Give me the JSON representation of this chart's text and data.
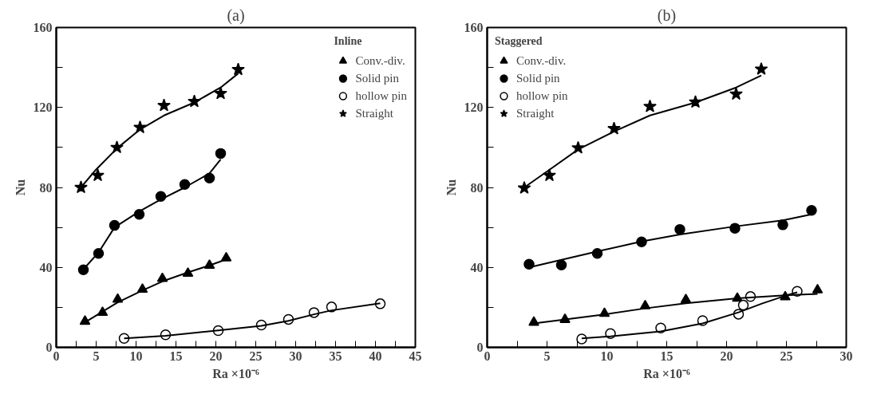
{
  "chart_data": [
    {
      "type": "scatter",
      "title": "(a)",
      "xlabel": "Ra ×10⁻⁶",
      "ylabel": "Nu",
      "legend_title": "Inline",
      "legend": "top right",
      "grid": false,
      "xlim": [
        0,
        45
      ],
      "xticks": [
        0,
        {
          "value": 2.5,
          "label": null
        },
        5,
        {
          "value": 7.5,
          "label": null
        },
        10,
        {
          "value": 12.5,
          "label": null
        },
        15,
        {
          "value": 17.5,
          "label": null
        },
        20,
        {
          "value": 22.5,
          "label": null
        },
        25,
        {
          "value": 27.5,
          "label": null
        },
        30,
        {
          "value": 32.5,
          "label": null
        },
        35,
        {
          "value": 37.5,
          "label": null
        },
        40,
        {
          "value": 42.5,
          "label": null
        },
        45
      ],
      "ylim": [
        0,
        160
      ],
      "yticks": [
        0,
        {
          "value": 20,
          "label": null
        },
        40,
        {
          "value": 60,
          "label": null
        },
        80,
        {
          "value": 100,
          "label": null
        },
        120,
        {
          "value": 140,
          "label": null
        },
        160
      ],
      "series": [
        {
          "name": "Conv.-div.",
          "color": "#000000",
          "marker": "triangle",
          "x": [
            3.6,
            5.8,
            7.7,
            10.8,
            13.3,
            16.5,
            19.2,
            21.3
          ],
          "values": [
            13,
            17.4,
            24,
            29,
            34.4,
            37,
            41,
            44.7
          ]
        },
        {
          "name": "Solid pin",
          "color": "#000000",
          "marker": "circle",
          "x": [
            3.4,
            5.3,
            7.3,
            10.4,
            13.1,
            16.1,
            19.2,
            20.6
          ],
          "values": [
            38.8,
            47,
            61,
            66.5,
            75.5,
            81.5,
            84.7,
            97
          ]
        },
        {
          "name": "hollow pin",
          "color": "#ffffff",
          "marker": "circle",
          "x": [
            8.5,
            13.7,
            20.3,
            25.7,
            29.1,
            32.3,
            34.5,
            40.6
          ],
          "values": [
            4.5,
            6.3,
            8.4,
            11.2,
            14,
            17.4,
            20.2,
            21.8
          ]
        },
        {
          "name": "Straight",
          "color": "#000000",
          "marker": "star",
          "x": [
            3.1,
            5.2,
            7.6,
            10.5,
            13.5,
            17.3,
            20.6,
            22.8
          ],
          "values": [
            80,
            86,
            100,
            110,
            121,
            123,
            127,
            139
          ]
        },
        {
          "type": "line",
          "color": "#000000",
          "x": [
            3.6,
            7.7,
            10.8,
            13.3,
            16.5,
            19.2,
            21.3
          ],
          "values": [
            12.5,
            22.5,
            28.5,
            33,
            37.5,
            41,
            44
          ]
        },
        {
          "type": "line",
          "color": "#000000",
          "x": [
            3.4,
            5.3,
            7.3,
            10.4,
            13.1,
            16.1,
            19.2,
            20.6
          ],
          "values": [
            39,
            47.5,
            60,
            68,
            74,
            80,
            87,
            94
          ]
        },
        {
          "type": "line",
          "color": "#000000",
          "x": [
            8.5,
            13.7,
            20.3,
            25.7,
            29.1,
            32.3,
            34.5,
            40.6
          ],
          "values": [
            4.5,
            5.8,
            8.5,
            10.8,
            13.3,
            16.5,
            18.5,
            22
          ]
        },
        {
          "type": "line",
          "color": "#000000",
          "x": [
            3.3,
            5,
            7.6,
            10.5,
            13.5,
            17.3,
            20.6,
            22.8
          ],
          "values": [
            81,
            89,
            99.5,
            109,
            116,
            122.5,
            130,
            137
          ]
        }
      ]
    },
    {
      "type": "scatter",
      "title": "(b)",
      "xlabel": "Ra ×10⁻⁶",
      "ylabel": "Nu",
      "legend_title": "Staggered",
      "legend": "top left",
      "grid": false,
      "xlim": [
        0,
        30
      ],
      "xticks": [
        0,
        {
          "value": 2.5,
          "label": null
        },
        5,
        {
          "value": 7.5,
          "label": null
        },
        10,
        {
          "value": 12.5,
          "label": null
        },
        15,
        {
          "value": 17.5,
          "label": null
        },
        20,
        {
          "value": 22.5,
          "label": null
        },
        25,
        {
          "value": 27.5,
          "label": null
        },
        30
      ],
      "ylim": [
        0,
        160
      ],
      "yticks": [
        0,
        {
          "value": 20,
          "label": null
        },
        40,
        {
          "value": 60,
          "label": null
        },
        80,
        {
          "value": 100,
          "label": null
        },
        120,
        {
          "value": 140,
          "label": null
        },
        160
      ],
      "series": [
        {
          "name": "Conv.-div.",
          "color": "#000000",
          "marker": "triangle",
          "x": [
            3.9,
            6.5,
            9.8,
            13.2,
            16.6,
            20.9,
            24.9,
            27.6
          ],
          "values": [
            12.5,
            13.9,
            16.9,
            20.7,
            23.8,
            24.5,
            25.2,
            28.7
          ]
        },
        {
          "name": "Solid pin",
          "color": "#000000",
          "marker": "circle",
          "x": [
            3.5,
            6.2,
            9.2,
            12.9,
            16.1,
            20.7,
            24.7,
            27.1
          ],
          "values": [
            41.6,
            41.2,
            47,
            52.8,
            59,
            59.6,
            61.3,
            68.5
          ]
        },
        {
          "name": "hollow pin",
          "color": "#ffffff",
          "marker": "circle",
          "x": [
            7.9,
            10.3,
            14.5,
            18,
            21.0,
            21.4,
            22.0,
            25.9
          ],
          "values": [
            4.2,
            6.9,
            9.7,
            13.4,
            16.6,
            21.1,
            25.4,
            28
          ]
        },
        {
          "name": "Straight",
          "color": "#000000",
          "marker": "star",
          "x": [
            3.1,
            5.2,
            7.6,
            10.6,
            13.6,
            17.4,
            20.8,
            22.9
          ],
          "values": [
            79.7,
            86,
            99.8,
            109.4,
            120.5,
            122.7,
            126.7,
            139.2
          ]
        },
        {
          "type": "line",
          "color": "#000000",
          "x": [
            3.9,
            9.8,
            13.2,
            16.6,
            20.9,
            24.9,
            27.6
          ],
          "values": [
            12,
            16.5,
            19.5,
            22,
            24.5,
            26,
            26.7
          ]
        },
        {
          "type": "line",
          "color": "#000000",
          "x": [
            3.5,
            9.2,
            12.9,
            16.1,
            20.7,
            24.7,
            27.1
          ],
          "values": [
            40,
            48,
            53,
            56.5,
            60.5,
            63.5,
            66.5
          ]
        },
        {
          "type": "line",
          "color": "#000000",
          "x": [
            7.9,
            10.3,
            14.5,
            18,
            21,
            23,
            25,
            25.9
          ],
          "values": [
            4.5,
            5.5,
            8,
            12,
            17.5,
            22,
            26,
            27.5
          ]
        },
        {
          "type": "line",
          "color": "#000000",
          "x": [
            3.1,
            5,
            7.6,
            10.6,
            13.6,
            17.4,
            20.8,
            22.9
          ],
          "values": [
            80,
            88,
            99,
            108,
            116,
            122.5,
            130,
            136
          ]
        }
      ]
    }
  ]
}
